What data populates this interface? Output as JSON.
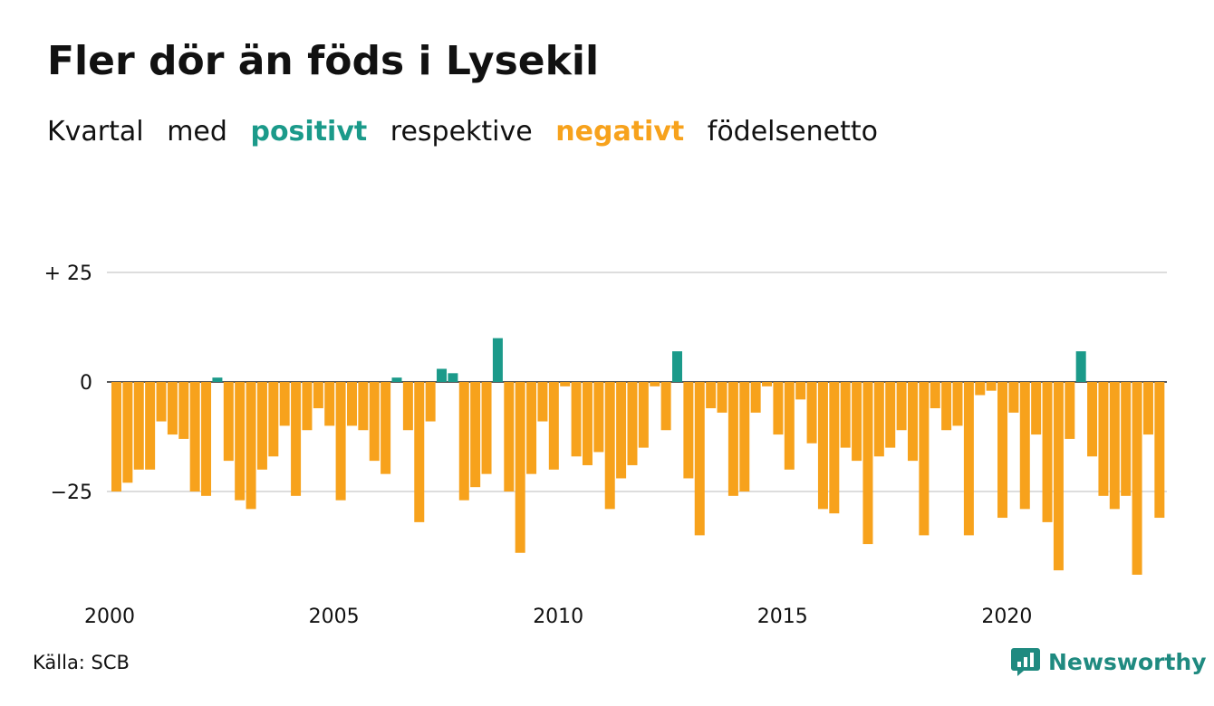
{
  "title": "Fler dör än föds i Lysekil",
  "subtitle": {
    "w1": "Kvartal",
    "w2": "med",
    "positive": "positivt",
    "w3": "respektive",
    "negative": "negativt",
    "w4": "födelsenetto"
  },
  "source": "Källa: SCB",
  "brand": "Newsworthy",
  "colors": {
    "positive": "#1b9a8a",
    "negative": "#f7a21c",
    "grid": "#dddddd"
  },
  "chart_data": {
    "type": "bar",
    "x_start": "2000 Q1",
    "period": "quarter",
    "y_ticks": [
      {
        "value": 25,
        "label": "+ 25"
      },
      {
        "value": 0,
        "label": "0"
      },
      {
        "value": -25,
        "label": "−25"
      }
    ],
    "x_ticks": [
      {
        "year": 2000,
        "label": "2000"
      },
      {
        "year": 2005,
        "label": "2005"
      },
      {
        "year": 2010,
        "label": "2010"
      },
      {
        "year": 2015,
        "label": "2015"
      },
      {
        "year": 2020,
        "label": "2020"
      }
    ],
    "ylim": [
      -45,
      25
    ],
    "grid": true,
    "values": [
      -25,
      -23,
      -20,
      -20,
      -9,
      -12,
      -13,
      -25,
      -26,
      1,
      -18,
      -27,
      -29,
      -20,
      -17,
      -10,
      -26,
      -11,
      -6,
      -10,
      -27,
      -10,
      -11,
      -18,
      -21,
      1,
      -11,
      -32,
      -9,
      3,
      2,
      -27,
      -24,
      -21,
      10,
      -25,
      -39,
      -21,
      -9,
      -20,
      -1,
      -17,
      -19,
      -16,
      -29,
      -22,
      -19,
      -15,
      -1,
      -11,
      7,
      -22,
      -35,
      -6,
      -7,
      -26,
      -25,
      -7,
      -1,
      -12,
      -20,
      -4,
      -14,
      -29,
      -30,
      -15,
      -18,
      -37,
      -17,
      -15,
      -11,
      -18,
      -35,
      -6,
      -11,
      -10,
      -35,
      -3,
      -2,
      -31,
      -7,
      -29,
      -12,
      -32,
      -43,
      -13,
      7,
      -17,
      -26,
      -29,
      -26,
      -44,
      -12,
      -31
    ]
  }
}
